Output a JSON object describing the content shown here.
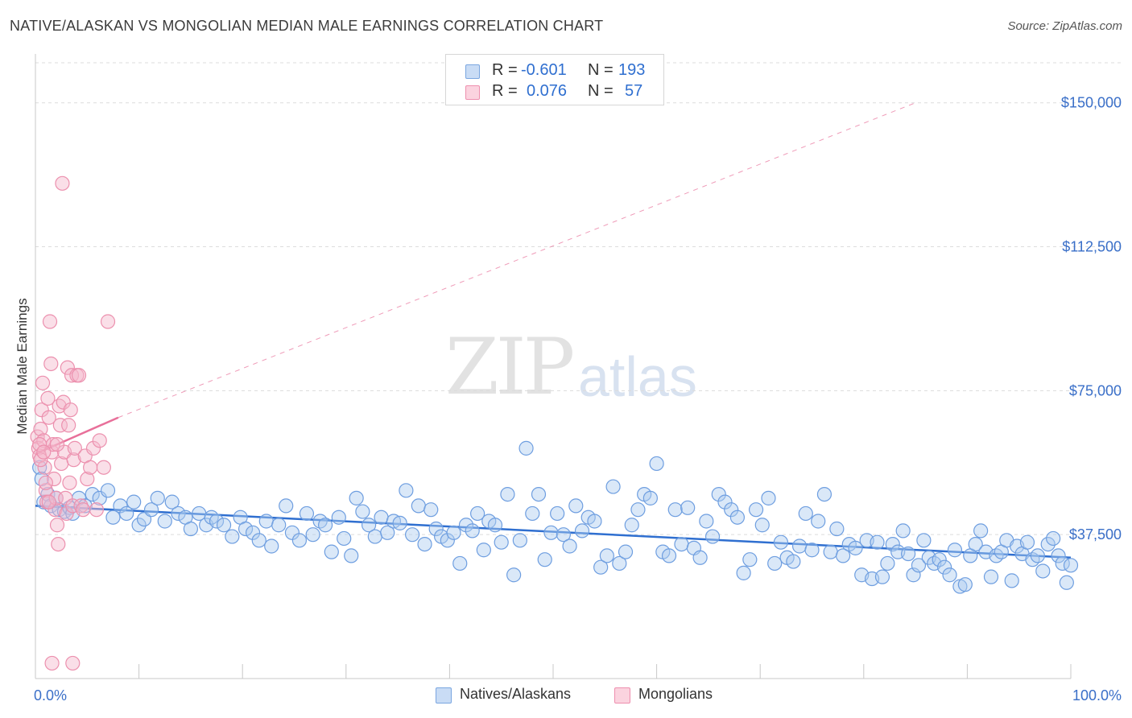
{
  "header": {
    "title": "NATIVE/ALASKAN VS MONGOLIAN MEDIAN MALE EARNINGS CORRELATION CHART",
    "source": "Source: ZipAtlas.com"
  },
  "watermark": {
    "zip": "ZIP",
    "atlas": "atlas"
  },
  "legend": {
    "rows": [
      {
        "r_label": "R =",
        "r_value": "-0.601",
        "n_label": "N =",
        "n_value": "193",
        "color": "#aecbf0"
      },
      {
        "r_label": "R =",
        "r_value": "0.076",
        "n_label": "N =",
        "n_value": "57",
        "color": "#f5b8cb"
      }
    ]
  },
  "bottom_legend": {
    "items": [
      {
        "label": "Natives/Alaskans",
        "color": "#aecbf0"
      },
      {
        "label": "Mongolians",
        "color": "#f5b8cb"
      }
    ]
  },
  "chart_data": {
    "type": "scatter",
    "title": "NATIVE/ALASKAN VS MONGOLIAN MEDIAN MALE EARNINGS CORRELATION CHART",
    "xlabel": "",
    "ylabel": "Median Male Earnings",
    "xlim": [
      0,
      100
    ],
    "ylim": [
      0,
      160000
    ],
    "x_tick_labels": [
      "0.0%",
      "100.0%"
    ],
    "y_ticks": [
      37500,
      75000,
      112500,
      150000
    ],
    "y_tick_labels": [
      "$37,500",
      "$75,000",
      "$112,500",
      "$150,000"
    ],
    "colors": {
      "blue": "#2f6fd0",
      "blue_fill": "#aecbf0",
      "pink": "#e8709a",
      "pink_fill": "#f5b8cb"
    },
    "series": [
      {
        "name": "Natives/Alaskans",
        "trend": {
          "x0": 0,
          "y0": 45000,
          "x1": 100,
          "y1": 31500,
          "style": "solid"
        },
        "points": [
          [
            0.4,
            55000
          ],
          [
            0.6,
            52000
          ],
          [
            0.8,
            46000
          ],
          [
            1.2,
            48000
          ],
          [
            1.5,
            45000
          ],
          [
            2,
            47000
          ],
          [
            2.3,
            44000
          ],
          [
            2.8,
            43500
          ],
          [
            3.3,
            44500
          ],
          [
            3.6,
            43000
          ],
          [
            4.2,
            47000
          ],
          [
            4.8,
            45000
          ],
          [
            5.5,
            48000
          ],
          [
            6.2,
            47000
          ],
          [
            7,
            49000
          ],
          [
            7.5,
            42000
          ],
          [
            8.2,
            45000
          ],
          [
            8.8,
            43000
          ],
          [
            9.5,
            46000
          ],
          [
            10,
            40000
          ],
          [
            10.5,
            41500
          ],
          [
            11.2,
            44000
          ],
          [
            11.8,
            47000
          ],
          [
            12.5,
            41000
          ],
          [
            13.2,
            46000
          ],
          [
            13.8,
            43000
          ],
          [
            14.5,
            42000
          ],
          [
            15,
            39000
          ],
          [
            15.8,
            43000
          ],
          [
            16.5,
            40000
          ],
          [
            17,
            42000
          ],
          [
            17.5,
            41000
          ],
          [
            18.2,
            40000
          ],
          [
            19,
            37000
          ],
          [
            19.8,
            42000
          ],
          [
            20.3,
            39000
          ],
          [
            21,
            38000
          ],
          [
            21.6,
            36000
          ],
          [
            22.3,
            41000
          ],
          [
            22.8,
            34500
          ],
          [
            23.5,
            40000
          ],
          [
            24.2,
            45000
          ],
          [
            24.8,
            38000
          ],
          [
            25.5,
            36000
          ],
          [
            26.2,
            43000
          ],
          [
            26.8,
            37500
          ],
          [
            27.5,
            41000
          ],
          [
            28,
            40000
          ],
          [
            28.6,
            33000
          ],
          [
            29.3,
            42000
          ],
          [
            29.8,
            36500
          ],
          [
            30.5,
            32000
          ],
          [
            31,
            47000
          ],
          [
            31.6,
            43500
          ],
          [
            32.2,
            40000
          ],
          [
            32.8,
            37000
          ],
          [
            33.4,
            42000
          ],
          [
            34,
            38000
          ],
          [
            34.6,
            41000
          ],
          [
            35.2,
            40500
          ],
          [
            35.8,
            49000
          ],
          [
            36.4,
            37500
          ],
          [
            37,
            45000
          ],
          [
            37.6,
            35000
          ],
          [
            38.2,
            44000
          ],
          [
            38.7,
            39000
          ],
          [
            39.2,
            37000
          ],
          [
            39.8,
            36000
          ],
          [
            40.4,
            38000
          ],
          [
            41,
            30000
          ],
          [
            41.6,
            40000
          ],
          [
            42.2,
            38500
          ],
          [
            42.7,
            43000
          ],
          [
            43.3,
            33500
          ],
          [
            43.8,
            41000
          ],
          [
            44.4,
            40000
          ],
          [
            45,
            35500
          ],
          [
            45.6,
            48000
          ],
          [
            46.2,
            27000
          ],
          [
            46.8,
            36000
          ],
          [
            47.4,
            60000
          ],
          [
            48,
            43000
          ],
          [
            48.6,
            48000
          ],
          [
            49.2,
            31000
          ],
          [
            49.8,
            38000
          ],
          [
            50.4,
            43000
          ],
          [
            51,
            37500
          ],
          [
            51.6,
            34500
          ],
          [
            52.2,
            45000
          ],
          [
            52.8,
            38500
          ],
          [
            53.4,
            42000
          ],
          [
            54,
            41000
          ],
          [
            54.6,
            29000
          ],
          [
            55.2,
            32000
          ],
          [
            55.8,
            50000
          ],
          [
            56.4,
            30000
          ],
          [
            57,
            33000
          ],
          [
            57.6,
            40000
          ],
          [
            58.2,
            44000
          ],
          [
            58.8,
            48000
          ],
          [
            59.4,
            47000
          ],
          [
            60,
            56000
          ],
          [
            60.6,
            33000
          ],
          [
            61.2,
            32000
          ],
          [
            61.8,
            44000
          ],
          [
            62.4,
            35000
          ],
          [
            63,
            44500
          ],
          [
            63.6,
            34000
          ],
          [
            64.2,
            31500
          ],
          [
            64.8,
            41000
          ],
          [
            65.4,
            37000
          ],
          [
            66,
            48000
          ],
          [
            66.6,
            46000
          ],
          [
            67.2,
            44000
          ],
          [
            67.8,
            42000
          ],
          [
            68.4,
            27500
          ],
          [
            69,
            31000
          ],
          [
            69.6,
            44000
          ],
          [
            70.2,
            40000
          ],
          [
            70.8,
            47000
          ],
          [
            71.4,
            30000
          ],
          [
            72,
            35500
          ],
          [
            72.6,
            31500
          ],
          [
            73.2,
            30500
          ],
          [
            73.8,
            34500
          ],
          [
            74.4,
            43000
          ],
          [
            75,
            33500
          ],
          [
            75.6,
            41000
          ],
          [
            76.2,
            48000
          ],
          [
            76.8,
            33000
          ],
          [
            77.4,
            39000
          ],
          [
            78,
            32000
          ],
          [
            78.6,
            35000
          ],
          [
            79.2,
            34000
          ],
          [
            79.8,
            27000
          ],
          [
            80.3,
            36000
          ],
          [
            80.8,
            26000
          ],
          [
            81.3,
            35500
          ],
          [
            81.8,
            26500
          ],
          [
            82.3,
            30000
          ],
          [
            82.8,
            35000
          ],
          [
            83.3,
            33000
          ],
          [
            83.8,
            38500
          ],
          [
            84.3,
            32500
          ],
          [
            84.8,
            27000
          ],
          [
            85.3,
            29500
          ],
          [
            85.8,
            36000
          ],
          [
            86.3,
            31500
          ],
          [
            86.8,
            30000
          ],
          [
            87.3,
            31000
          ],
          [
            87.8,
            29000
          ],
          [
            88.3,
            27000
          ],
          [
            88.8,
            33500
          ],
          [
            89.3,
            24000
          ],
          [
            89.8,
            24500
          ],
          [
            90.3,
            32000
          ],
          [
            90.8,
            35000
          ],
          [
            91.3,
            38500
          ],
          [
            91.8,
            33000
          ],
          [
            92.3,
            26500
          ],
          [
            92.8,
            32000
          ],
          [
            93.3,
            33000
          ],
          [
            93.8,
            36000
          ],
          [
            94.3,
            25500
          ],
          [
            94.8,
            34500
          ],
          [
            95.3,
            32500
          ],
          [
            95.8,
            35500
          ],
          [
            96.3,
            31000
          ],
          [
            96.8,
            32000
          ],
          [
            97.3,
            28000
          ],
          [
            97.8,
            35000
          ],
          [
            98.3,
            36500
          ],
          [
            98.8,
            32000
          ],
          [
            99.2,
            30000
          ],
          [
            99.6,
            25000
          ],
          [
            100,
            29500
          ]
        ]
      },
      {
        "name": "Mongolians",
        "trend": {
          "x0": 0,
          "y0": 58500,
          "x1": 8,
          "y1": 68000,
          "style": "solid",
          "extended_to": [
            85,
            150000
          ],
          "extended_style": "dashed"
        },
        "points": [
          [
            0.2,
            63000
          ],
          [
            0.3,
            60000
          ],
          [
            0.4,
            58000
          ],
          [
            0.5,
            65000
          ],
          [
            0.6,
            70000
          ],
          [
            0.7,
            77000
          ],
          [
            0.8,
            62000
          ],
          [
            0.9,
            55000
          ],
          [
            1,
            49000
          ],
          [
            1.1,
            46000
          ],
          [
            1.2,
            73000
          ],
          [
            1.3,
            68000
          ],
          [
            1.4,
            93000
          ],
          [
            1.5,
            82000
          ],
          [
            1.6,
            59000
          ],
          [
            1.7,
            61000
          ],
          [
            1.8,
            52000
          ],
          [
            1.9,
            44000
          ],
          [
            2,
            47000
          ],
          [
            2.1,
            40000
          ],
          [
            2.2,
            35000
          ],
          [
            2.3,
            71000
          ],
          [
            2.4,
            66000
          ],
          [
            2.5,
            56000
          ],
          [
            2.6,
            129000
          ],
          [
            2.7,
            72000
          ],
          [
            2.8,
            59000
          ],
          [
            2.9,
            47000
          ],
          [
            3,
            43000
          ],
          [
            3.1,
            81000
          ],
          [
            3.2,
            66000
          ],
          [
            3.3,
            51000
          ],
          [
            3.4,
            70000
          ],
          [
            3.5,
            79000
          ],
          [
            3.6,
            45000
          ],
          [
            3.7,
            57000
          ],
          [
            3.8,
            60000
          ],
          [
            4,
            79000
          ],
          [
            4.2,
            79000
          ],
          [
            4.4,
            45000
          ],
          [
            4.6,
            44000
          ],
          [
            4.8,
            58000
          ],
          [
            5,
            52000
          ],
          [
            5.3,
            55000
          ],
          [
            5.6,
            60000
          ],
          [
            5.9,
            44000
          ],
          [
            6.2,
            62000
          ],
          [
            6.6,
            55000
          ],
          [
            7,
            93000
          ],
          [
            0.4,
            61000
          ],
          [
            0.5,
            57000
          ],
          [
            0.8,
            59000
          ],
          [
            1,
            51000
          ],
          [
            1.3,
            46000
          ],
          [
            1.6,
            4000
          ],
          [
            2.1,
            61000
          ],
          [
            3.6,
            4000
          ]
        ]
      }
    ]
  }
}
